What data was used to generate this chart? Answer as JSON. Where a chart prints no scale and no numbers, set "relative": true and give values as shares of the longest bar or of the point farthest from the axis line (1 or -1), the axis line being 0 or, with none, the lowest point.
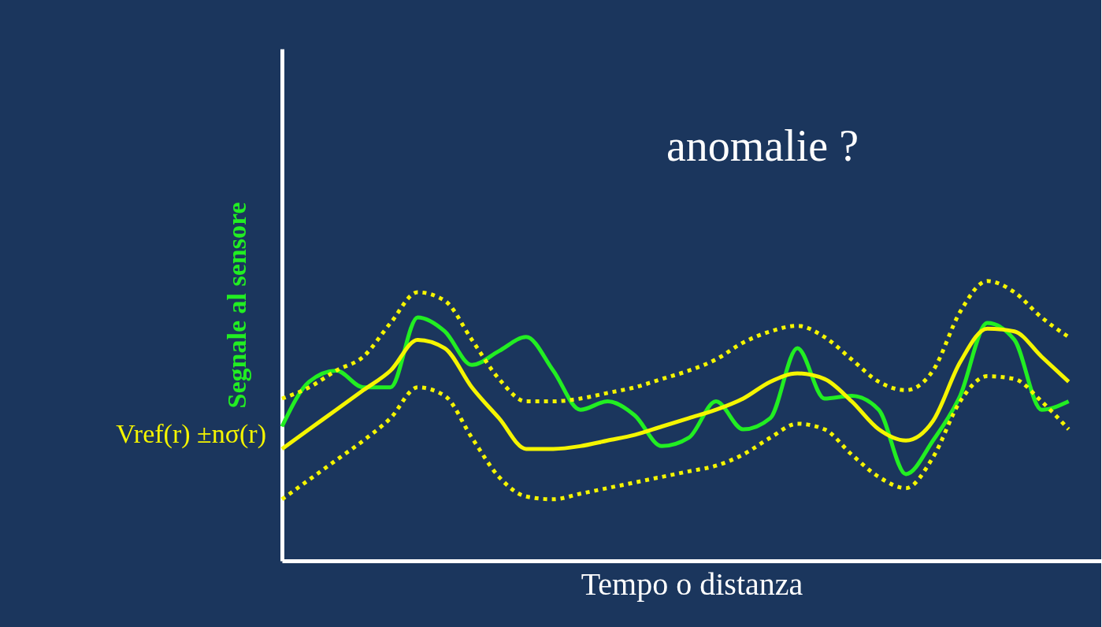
{
  "chart_data": {
    "type": "line",
    "relative": true,
    "xlabel": "Tempo o distanza",
    "ylabel": "Segnale al sensore",
    "annotations": [
      "anomalie ?"
    ],
    "categories": [
      null,
      null,
      null,
      null,
      null,
      null,
      null,
      null,
      null,
      null,
      null,
      null,
      null,
      null,
      null,
      null,
      null,
      null,
      null,
      null,
      null,
      null,
      null,
      null,
      null,
      null,
      null,
      null,
      null,
      null
    ],
    "series": [
      {
        "color": "#22ee22",
        "line_style": "solid",
        "values": [
          0.48,
          0.64,
          0.68,
          0.62,
          0.62,
          0.87,
          0.82,
          0.7,
          0.75,
          0.8,
          0.68,
          0.54,
          0.57,
          0.52,
          0.41,
          0.44,
          0.57,
          0.47,
          0.51,
          0.76,
          0.58,
          0.59,
          0.54,
          0.31,
          0.43,
          0.59,
          0.85,
          0.79,
          0.54,
          0.57
        ]
      },
      {
        "color": "#f5f500",
        "line_style": "dotted",
        "values": [
          0.58,
          0.62,
          0.68,
          0.73,
          0.85,
          0.96,
          0.93,
          0.79,
          0.65,
          0.57,
          0.57,
          0.58,
          0.6,
          0.62,
          0.65,
          0.68,
          0.72,
          0.78,
          0.82,
          0.84,
          0.8,
          0.72,
          0.64,
          0.61,
          0.68,
          0.89,
          1.0,
          0.96,
          0.87,
          0.8
        ]
      },
      {
        "color": "#f5f500",
        "line_style": "dotted",
        "values": [
          0.22,
          0.29,
          0.36,
          0.43,
          0.51,
          0.62,
          0.59,
          0.44,
          0.3,
          0.23,
          0.22,
          0.24,
          0.26,
          0.28,
          0.3,
          0.32,
          0.34,
          0.38,
          0.44,
          0.49,
          0.47,
          0.38,
          0.3,
          0.26,
          0.37,
          0.57,
          0.66,
          0.65,
          0.57,
          0.47
        ]
      },
      {
        "name": "Vref(r) ±nσ(r)",
        "color": "#f5f500",
        "line_style": "solid",
        "values": [
          0.4,
          0.47,
          0.54,
          0.61,
          0.68,
          0.79,
          0.76,
          0.62,
          0.51,
          0.4,
          0.4,
          0.41,
          0.43,
          0.45,
          0.48,
          0.51,
          0.54,
          0.58,
          0.64,
          0.67,
          0.65,
          0.57,
          0.47,
          0.43,
          0.5,
          0.71,
          0.83,
          0.82,
          0.73,
          0.64
        ]
      }
    ]
  }
}
